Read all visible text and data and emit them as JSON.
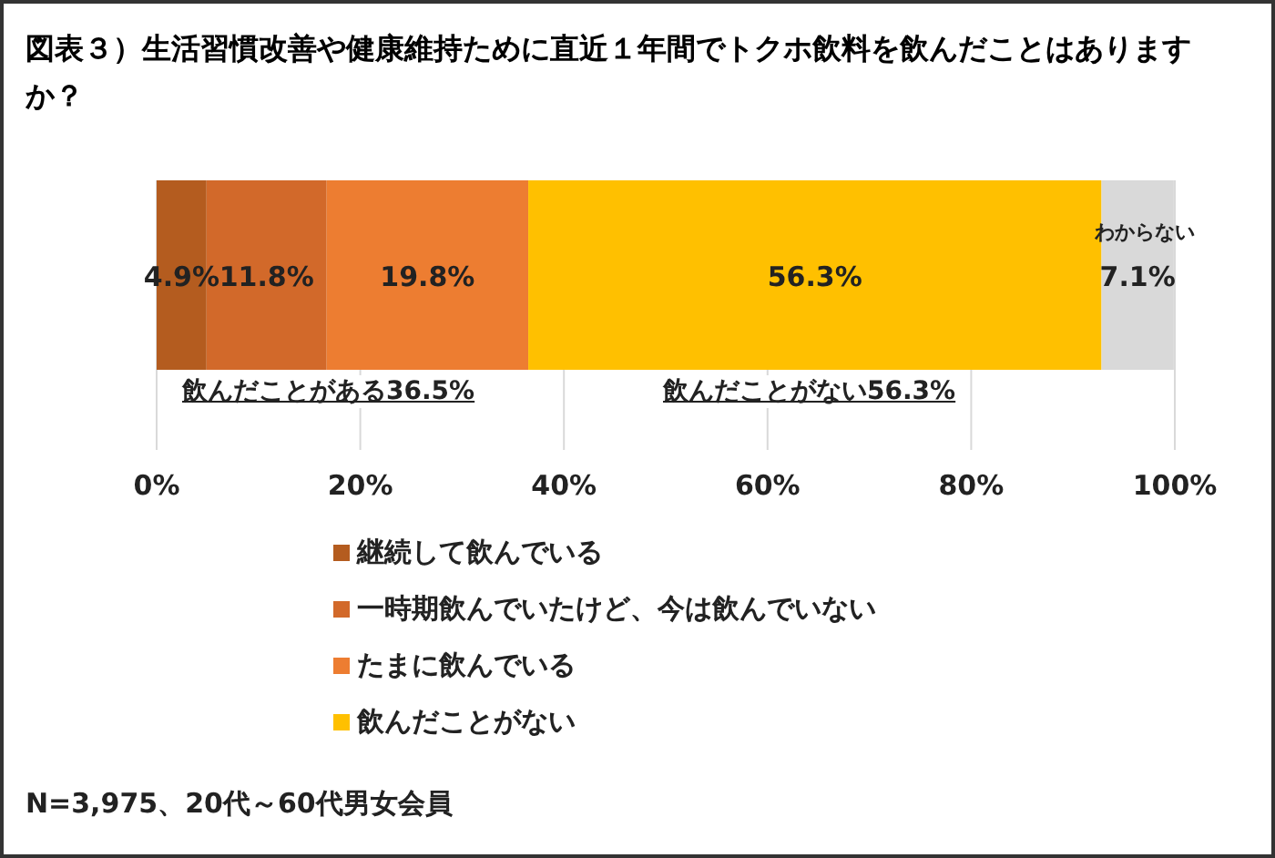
{
  "chart_data": {
    "type": "bar",
    "orientation": "horizontal",
    "stacked": true,
    "title": "図表３）生活習慣改善や健康維持ために直近１年間でトクホ飲料を飲んだことはありますか？",
    "categories": [
      null
    ],
    "series": [
      {
        "name": "継続して飲んでいる",
        "color": "#b45c1f",
        "values": [
          4.9
        ],
        "value_labels": [
          "4.9%"
        ]
      },
      {
        "name": "一時期飲んでいたけど、今は飲んでいない",
        "color": "#d2692a",
        "values": [
          11.8
        ],
        "value_labels": [
          "11.8%"
        ]
      },
      {
        "name": "たまに飲んでいる",
        "color": "#ed7d31",
        "values": [
          19.8
        ],
        "value_labels": [
          "19.8%"
        ]
      },
      {
        "name": "飲んだことがない",
        "color": "#ffc000",
        "values": [
          56.3
        ],
        "value_labels": [
          "56.3%"
        ]
      },
      {
        "name": "わからない",
        "color": "#d9d9d9",
        "values": [
          7.1
        ],
        "value_labels": [
          "7.1%"
        ]
      }
    ],
    "xlim": [
      0,
      100
    ],
    "xticks": [
      {
        "value": 0,
        "label": "0%"
      },
      {
        "value": 20,
        "label": "20%"
      },
      {
        "value": 40,
        "label": "40%"
      },
      {
        "value": 60,
        "label": "60%"
      },
      {
        "value": 80,
        "label": "80%"
      },
      {
        "value": 100,
        "label": "100%"
      }
    ],
    "grid": "x",
    "legend": "bottom",
    "annotations": [
      "飲んだことがある36.5%",
      "飲んだことがない56.3%",
      "N=3,975、20代～60代男女会員"
    ]
  }
}
